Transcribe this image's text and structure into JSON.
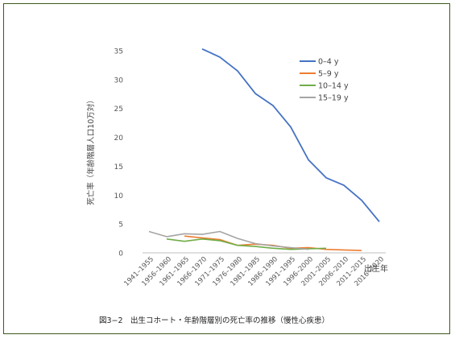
{
  "caption": "図3−2　出生コホート・年齢階層別の死亡率の推移（慢性心疾患）",
  "chart_data": {
    "type": "line",
    "title": "",
    "ylabel": "死亡率（年齢階層人口10万対）",
    "xlabel": "出生年",
    "ylim": [
      0,
      35
    ],
    "yticks": [
      0,
      5,
      10,
      15,
      20,
      25,
      30,
      35
    ],
    "grid": false,
    "legend_position": "top-right",
    "categories": [
      "1941–1955",
      "1956–1960",
      "1961–1965",
      "1966–1970",
      "1971–1975",
      "1976–1980",
      "1981–1985",
      "1986–1990",
      "1991–1995",
      "1996–2000",
      "2001–2005",
      "2006–2010",
      "2011–2015",
      "2016–2020"
    ],
    "series": [
      {
        "name": "0–4 y",
        "color": "#4472C4",
        "values": [
          null,
          null,
          null,
          35.3,
          33.9,
          31.5,
          27.6,
          25.5,
          21.8,
          16.1,
          13.0,
          11.7,
          9.1,
          5.4
        ]
      },
      {
        "name": "5–9 y",
        "color": "#ED7D31",
        "values": [
          null,
          null,
          2.9,
          2.6,
          2.3,
          1.3,
          1.5,
          1.3,
          0.8,
          0.9,
          0.6,
          0.5,
          0.4,
          null
        ]
      },
      {
        "name": "10–14 y",
        "color": "#70AD47",
        "values": [
          null,
          2.4,
          2.0,
          2.4,
          2.1,
          1.3,
          1.1,
          0.8,
          0.6,
          0.7,
          0.8,
          null,
          null,
          null
        ]
      },
      {
        "name": "15–19 y",
        "color": "#A5A5A5",
        "values": [
          3.7,
          2.8,
          3.3,
          3.2,
          3.7,
          2.5,
          1.6,
          1.2,
          0.9,
          0.6,
          null,
          null,
          null,
          null
        ]
      }
    ]
  }
}
